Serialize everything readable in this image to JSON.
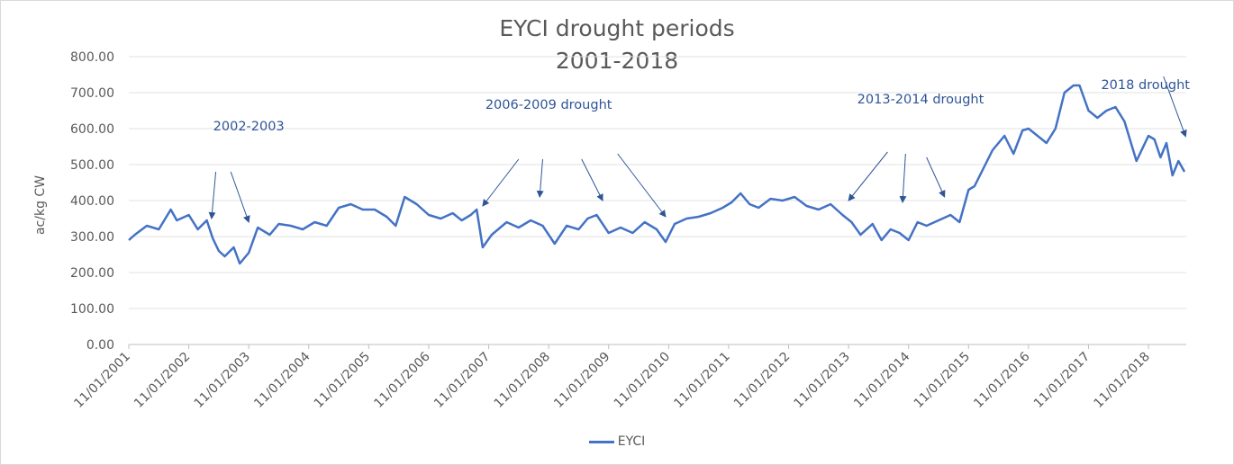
{
  "chart_data": {
    "type": "line",
    "title_line1": "EYCI drought periods",
    "title_line2": "2001-2018",
    "ylabel": "ac/kg CW",
    "xlabel": "",
    "ylim": [
      0,
      800
    ],
    "yticks": [
      "0.00",
      "100.00",
      "200.00",
      "300.00",
      "400.00",
      "500.00",
      "600.00",
      "700.00",
      "800.00"
    ],
    "xticks": [
      "11/01/2001",
      "11/01/2002",
      "11/01/2003",
      "11/01/2004",
      "11/01/2005",
      "11/01/2006",
      "11/01/2007",
      "11/01/2008",
      "11/01/2009",
      "11/01/2010",
      "11/01/2011",
      "11/01/2012",
      "11/01/2013",
      "11/01/2014",
      "11/01/2015",
      "11/01/2016",
      "11/01/2017",
      "11/01/2018"
    ],
    "grid": true,
    "legend_position": "bottom",
    "series": [
      {
        "name": "EYCI",
        "color": "#4472c4",
        "x": [
          2001.0,
          2001.1,
          2001.3,
          2001.5,
          2001.7,
          2001.8,
          2002.0,
          2002.15,
          2002.3,
          2002.4,
          2002.5,
          2002.6,
          2002.75,
          2002.85,
          2003.0,
          2003.15,
          2003.35,
          2003.5,
          2003.7,
          2003.9,
          2004.1,
          2004.3,
          2004.5,
          2004.7,
          2004.9,
          2005.1,
          2005.3,
          2005.45,
          2005.6,
          2005.8,
          2006.0,
          2006.2,
          2006.4,
          2006.55,
          2006.7,
          2006.8,
          2006.9,
          2007.05,
          2007.3,
          2007.5,
          2007.7,
          2007.9,
          2008.1,
          2008.3,
          2008.5,
          2008.65,
          2008.8,
          2009.0,
          2009.2,
          2009.4,
          2009.6,
          2009.8,
          2009.95,
          2010.1,
          2010.3,
          2010.5,
          2010.7,
          2010.9,
          2011.05,
          2011.2,
          2011.35,
          2011.5,
          2011.7,
          2011.9,
          2012.1,
          2012.3,
          2012.5,
          2012.7,
          2012.9,
          2013.05,
          2013.2,
          2013.4,
          2013.55,
          2013.7,
          2013.85,
          2014.0,
          2014.15,
          2014.3,
          2014.5,
          2014.7,
          2014.85,
          2015.0,
          2015.1,
          2015.25,
          2015.4,
          2015.6,
          2015.75,
          2015.9,
          2016.0,
          2016.15,
          2016.3,
          2016.45,
          2016.6,
          2016.75,
          2016.85,
          2017.0,
          2017.15,
          2017.3,
          2017.45,
          2017.6,
          2017.8,
          2018.0,
          2018.1,
          2018.2,
          2018.3,
          2018.4,
          2018.5,
          2018.55,
          2018.6
        ],
        "values": [
          290,
          305,
          330,
          320,
          375,
          345,
          360,
          320,
          345,
          295,
          260,
          245,
          270,
          225,
          255,
          325,
          305,
          335,
          330,
          320,
          340,
          330,
          380,
          390,
          375,
          375,
          355,
          330,
          410,
          390,
          360,
          350,
          365,
          345,
          360,
          375,
          270,
          305,
          340,
          325,
          345,
          330,
          280,
          330,
          320,
          350,
          360,
          310,
          325,
          310,
          340,
          320,
          285,
          335,
          350,
          355,
          365,
          380,
          395,
          420,
          390,
          380,
          405,
          400,
          410,
          385,
          375,
          390,
          360,
          340,
          305,
          335,
          290,
          320,
          310,
          290,
          340,
          330,
          345,
          360,
          340,
          430,
          440,
          490,
          540,
          580,
          530,
          595,
          600,
          580,
          560,
          600,
          700,
          720,
          720,
          650,
          630,
          650,
          660,
          620,
          510,
          580,
          570,
          520,
          560,
          470,
          510,
          495,
          480
        ]
      }
    ],
    "annotations": [
      {
        "text": "2002-2003",
        "at": [
          2003.0,
          595
        ],
        "arrows": [
          [
            2002.45,
            480,
            2002.38,
            350
          ],
          [
            2002.7,
            480,
            2003.0,
            340
          ]
        ]
      },
      {
        "text": "2006-2009 drought",
        "at": [
          2008.0,
          655
        ],
        "arrows": [
          [
            2007.5,
            515,
            2006.9,
            385
          ],
          [
            2007.9,
            515,
            2007.85,
            410
          ],
          [
            2008.55,
            515,
            2008.9,
            400
          ],
          [
            2009.15,
            530,
            2009.95,
            355
          ]
        ]
      },
      {
        "text": "2013-2014 drought",
        "at": [
          2014.2,
          670
        ],
        "arrows": [
          [
            2013.65,
            535,
            2013.0,
            400
          ],
          [
            2013.95,
            530,
            2013.9,
            395
          ],
          [
            2014.3,
            520,
            2014.6,
            410
          ]
        ]
      },
      {
        "text": "2018 drought",
        "at": [
          2017.95,
          710
        ],
        "arrows": [
          [
            2018.25,
            745,
            2018.62,
            578
          ]
        ]
      }
    ]
  },
  "legend": {
    "label": "EYCI"
  }
}
